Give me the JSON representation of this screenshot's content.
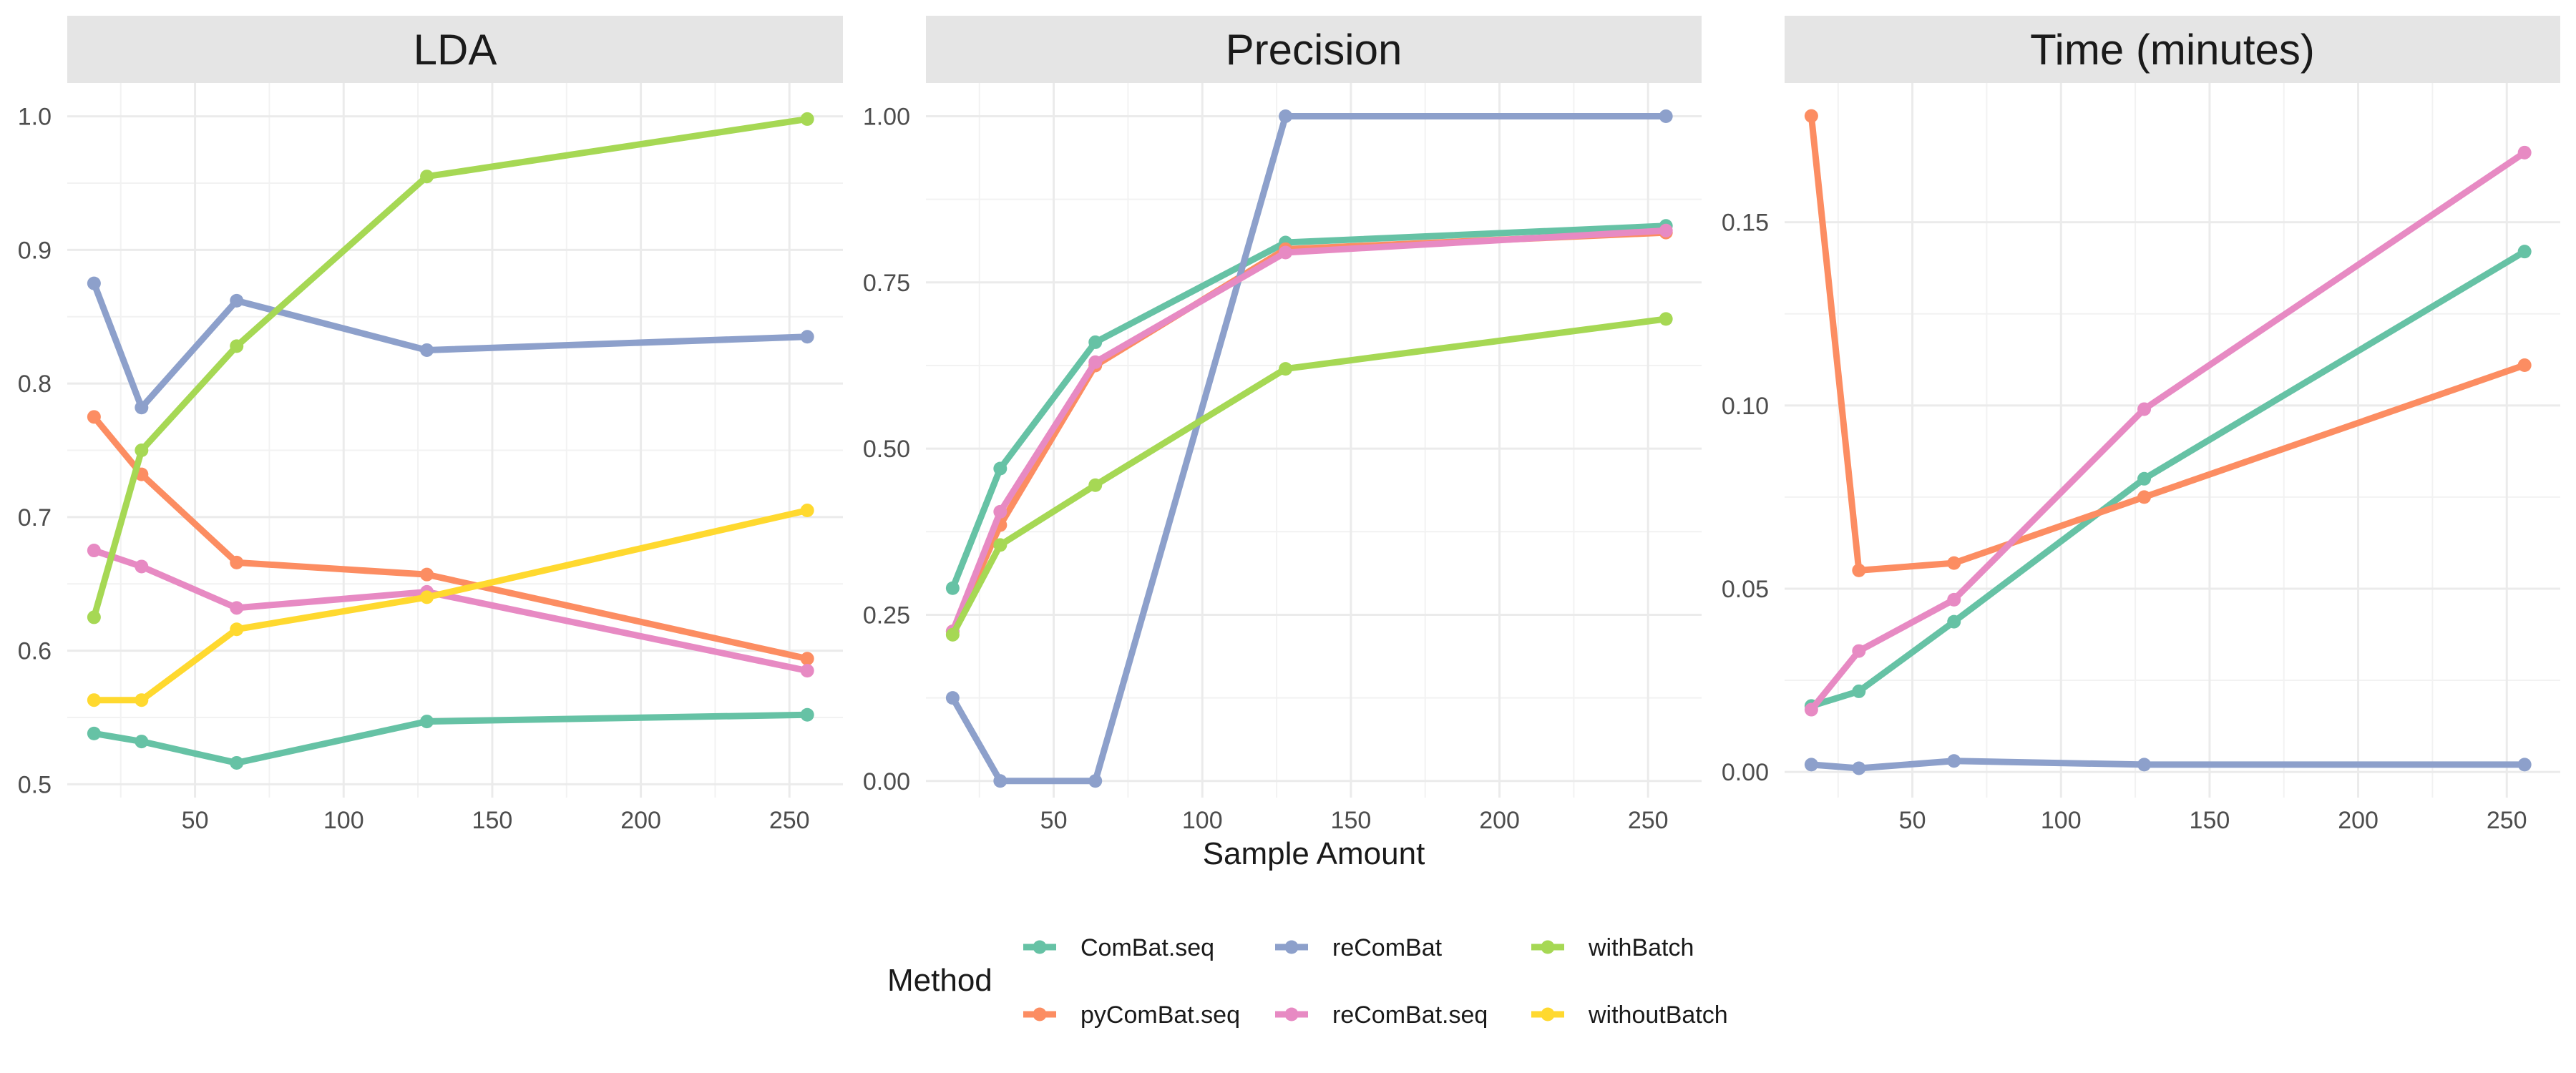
{
  "chart_data": {
    "type": "line",
    "xlabel": "Sample Amount",
    "legend": {
      "title": "Method",
      "placement": "bottom",
      "entries": [
        "ComBat.seq",
        "reComBat",
        "withBatch",
        "pyComBat.seq",
        "reComBat.seq",
        "withoutBatch"
      ]
    },
    "colors": {
      "ComBat.seq": "#66c2a5",
      "pyComBat.seq": "#fc8d62",
      "reComBat": "#8da0cb",
      "reComBat.seq": "#e78ac3",
      "withBatch": "#a6d854",
      "withoutBatch": "#ffd92f"
    },
    "grid": true,
    "panels": [
      {
        "title": "LDA",
        "x": [
          16,
          32,
          64,
          128,
          256
        ],
        "xlim": [
          7,
          268
        ],
        "xticks": [
          "50",
          "100",
          "150",
          "200",
          "250"
        ],
        "ylim": [
          0.49,
          1.025
        ],
        "yticks": [
          "0.5",
          "0.6",
          "0.7",
          "0.8",
          "0.9",
          "1.0"
        ],
        "series": [
          {
            "name": "ComBat.seq",
            "values": [
              0.538,
              0.532,
              0.516,
              0.547,
              0.552
            ]
          },
          {
            "name": "pyComBat.seq",
            "values": [
              0.775,
              0.732,
              0.666,
              0.657,
              0.594
            ]
          },
          {
            "name": "reComBat",
            "values": [
              0.875,
              0.782,
              0.862,
              0.825,
              0.835
            ]
          },
          {
            "name": "reComBat.seq",
            "values": [
              0.675,
              0.663,
              0.632,
              0.644,
              0.585
            ]
          },
          {
            "name": "withBatch",
            "values": [
              0.625,
              0.75,
              0.828,
              0.955,
              0.998
            ]
          },
          {
            "name": "withoutBatch",
            "values": [
              0.563,
              0.563,
              0.616,
              0.64,
              0.705
            ]
          }
        ]
      },
      {
        "title": "Precision",
        "x": [
          16,
          32,
          64,
          128,
          256
        ],
        "xlim": [
          7,
          268
        ],
        "xticks": [
          "50",
          "100",
          "150",
          "200",
          "250"
        ],
        "ylim": [
          -0.025,
          1.05
        ],
        "yticks": [
          "0.00",
          "0.25",
          "0.50",
          "0.75",
          "1.00"
        ],
        "series": [
          {
            "name": "ComBat.seq",
            "values": [
              0.29,
              0.47,
              0.66,
              0.81,
              0.835
            ]
          },
          {
            "name": "pyComBat.seq",
            "values": [
              0.225,
              0.385,
              0.625,
              0.8,
              0.825
            ]
          },
          {
            "name": "reComBat",
            "values": [
              0.125,
              0.0,
              0.0,
              1.0,
              1.0
            ]
          },
          {
            "name": "reComBat.seq",
            "values": [
              0.225,
              0.405,
              0.63,
              0.795,
              0.828
            ]
          },
          {
            "name": "withBatch",
            "values": [
              0.22,
              0.355,
              0.445,
              0.62,
              0.695
            ]
          }
        ]
      },
      {
        "title": "Time (minutes)",
        "x": [
          16,
          32,
          64,
          128,
          256
        ],
        "xlim": [
          7,
          268
        ],
        "xticks": [
          "50",
          "100",
          "150",
          "200",
          "250"
        ],
        "ylim": [
          -0.007,
          0.188
        ],
        "yticks": [
          "0.00",
          "0.05",
          "0.10",
          "0.15"
        ],
        "series": [
          {
            "name": "ComBat.seq",
            "values": [
              0.018,
              0.022,
              0.041,
              0.08,
              0.142
            ]
          },
          {
            "name": "pyComBat.seq",
            "values": [
              0.179,
              0.055,
              0.057,
              0.075,
              0.111
            ]
          },
          {
            "name": "reComBat",
            "values": [
              0.002,
              0.001,
              0.003,
              0.002,
              0.002
            ]
          },
          {
            "name": "reComBat.seq",
            "values": [
              0.017,
              0.033,
              0.047,
              0.099,
              0.169
            ]
          }
        ]
      }
    ]
  }
}
